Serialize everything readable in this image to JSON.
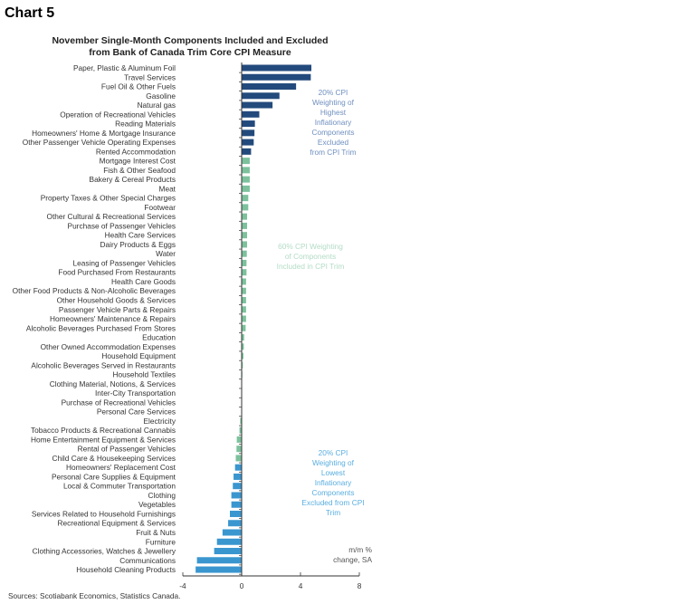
{
  "chart_label": "Chart 5",
  "chart_data": {
    "type": "bar",
    "orientation": "horizontal",
    "title_lines": [
      "November Single-Month Components Included and Excluded",
      "from Bank of Canada Trim Core CPI Measure"
    ],
    "categories": [
      "Paper, Plastic & Aluminum Foil",
      "Travel Services",
      "Fuel Oil & Other Fuels",
      "Gasoline",
      "Natural gas",
      "Operation of Recreational Vehicles",
      "Reading Materials",
      "Homeowners' Home & Mortgage Insurance",
      "Other Passenger Vehicle Operating Expenses",
      "Rented Accommodation",
      "Mortgage Interest Cost",
      "Fish & Other Seafood",
      "Bakery & Cereal Products",
      "Meat",
      "Property Taxes & Other Special Charges",
      "Footwear",
      "Other Cultural & Recreational Services",
      "Purchase of Passenger Vehicles",
      "Health Care Services",
      "Dairy Products & Eggs",
      "Water",
      "Leasing of Passenger Vehicles",
      "Food Purchased From Restaurants",
      "Health Care Goods",
      "Other Food Products & Non-Alcoholic Beverages",
      "Other Household Goods & Services",
      "Passenger Vehicle Parts & Repairs",
      "Homeowners' Maintenance & Repairs",
      "Alcoholic Beverages Purchased From Stores",
      "Education",
      "Other Owned Accommodation Expenses",
      "Household Equipment",
      "Alcoholic Beverages Served in Restaurants",
      "Household Textiles",
      "Clothing Material, Notions, & Services",
      "Inter-City Transportation",
      "Purchase of Recreational Vehicles",
      "Personal Care Services",
      "Electricity",
      "Tobacco Products & Recreational Cannabis",
      "Home Entertainment Equipment & Services",
      "Rental of Passenger Vehicles",
      "Child Care & Housekeeping Services",
      "Homeowners' Replacement Cost",
      "Personal Care Supplies & Equipment",
      "Local & Commuter Transportation",
      "Clothing",
      "Vegetables",
      "Services Related to Household Furnishings",
      "Recreational Equipment & Services",
      "Fruit & Nuts",
      "Furniture",
      "Clothing Accessories, Watches & Jewellery",
      "Communications",
      "Household Cleaning Products"
    ],
    "values": [
      4.74,
      4.7,
      3.7,
      2.57,
      2.1,
      1.2,
      0.9,
      0.87,
      0.82,
      0.64,
      0.55,
      0.55,
      0.55,
      0.55,
      0.45,
      0.45,
      0.37,
      0.37,
      0.37,
      0.37,
      0.35,
      0.33,
      0.33,
      0.3,
      0.3,
      0.3,
      0.3,
      0.3,
      0.27,
      0.17,
      0.15,
      0.12,
      0.08,
      0.05,
      0.02,
      0.0,
      0.0,
      -0.02,
      -0.1,
      -0.15,
      -0.33,
      -0.35,
      -0.4,
      -0.45,
      -0.55,
      -0.6,
      -0.7,
      -0.7,
      -0.8,
      -0.92,
      -1.3,
      -1.68,
      -1.87,
      -3.04,
      -3.13
    ],
    "groups": [
      {
        "name": "20% CPI Weighting of Highest Inflationary Components Excluded from CPI Trim",
        "from": 0,
        "to": 9,
        "color": "#234a7c",
        "text_color": "#6f8fbf",
        "annotation_lines": [
          "20% CPI",
          "Weighting of",
          "Highest",
          "Inflationary",
          "Components",
          "Excluded",
          "from CPI Trim"
        ]
      },
      {
        "name": "60% CPI Weighting of Components Included in CPI Trim",
        "from": 10,
        "to": 42,
        "color": "#7cc19c",
        "text_color": "#b3dcc6",
        "annotation_lines": [
          "60% CPI Weighting",
          "of Components",
          "Included in CPI Trim"
        ]
      },
      {
        "name": "20% CPI Weighting of Lowest Inflationary Components Excluded from CPI Trim",
        "from": 43,
        "to": 54,
        "color": "#3a96cf",
        "text_color": "#5aaee0",
        "annotation_lines": [
          "20% CPI",
          "Weighting of",
          "Lowest",
          "Inflationary",
          "Components",
          "Excluded from CPI",
          "Trim"
        ]
      }
    ],
    "xlim": [
      -4,
      8
    ],
    "xticks": [
      "-4",
      "0",
      "4",
      "8"
    ],
    "unit_lines": [
      "m/m %",
      "change, SA"
    ],
    "grid": false,
    "source": "Sources: Scotiabank Economics, Statistics Canada."
  }
}
